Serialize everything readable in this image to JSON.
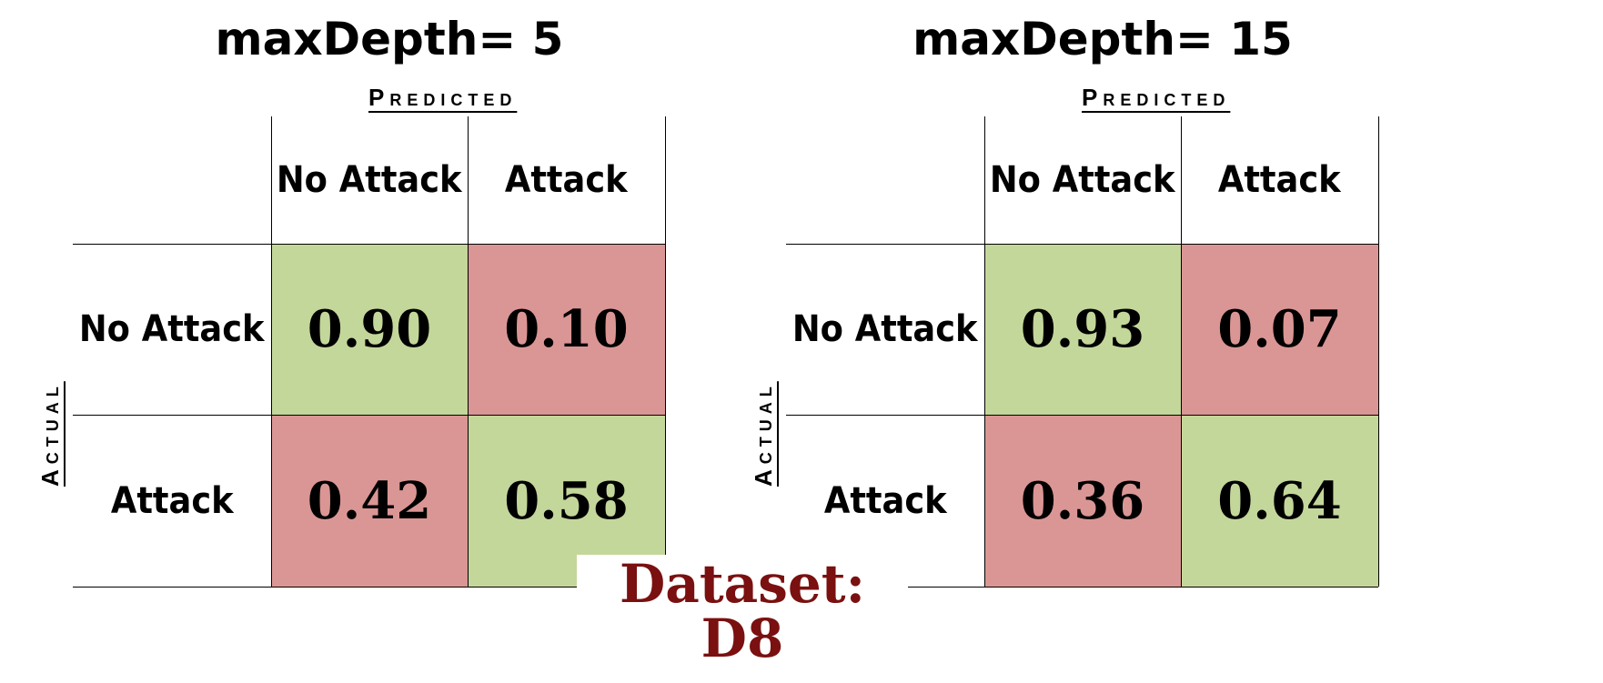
{
  "panels": [
    {
      "title": "maxDepth= 5",
      "predicted_label": "Predicted",
      "actual_label": "Actual",
      "col_headers": [
        "No Attack",
        "Attack"
      ],
      "row_headers": [
        "No Attack",
        "Attack"
      ],
      "values": [
        [
          "0.90",
          "0.10"
        ],
        [
          "0.42",
          "0.58"
        ]
      ],
      "colors": [
        [
          "#c4d79b",
          "#da9694"
        ],
        [
          "#da9694",
          "#c4d79b"
        ]
      ]
    },
    {
      "title": "maxDepth= 15",
      "predicted_label": "Predicted",
      "actual_label": "Actual",
      "col_headers": [
        "No Attack",
        "Attack"
      ],
      "row_headers": [
        "No Attack",
        "Attack"
      ],
      "values": [
        [
          "0.93",
          "0.07"
        ],
        [
          "0.36",
          "0.64"
        ]
      ],
      "colors": [
        [
          "#c4d79b",
          "#da9694"
        ],
        [
          "#da9694",
          "#c4d79b"
        ]
      ]
    }
  ],
  "dataset_label": "Dataset: D8"
}
